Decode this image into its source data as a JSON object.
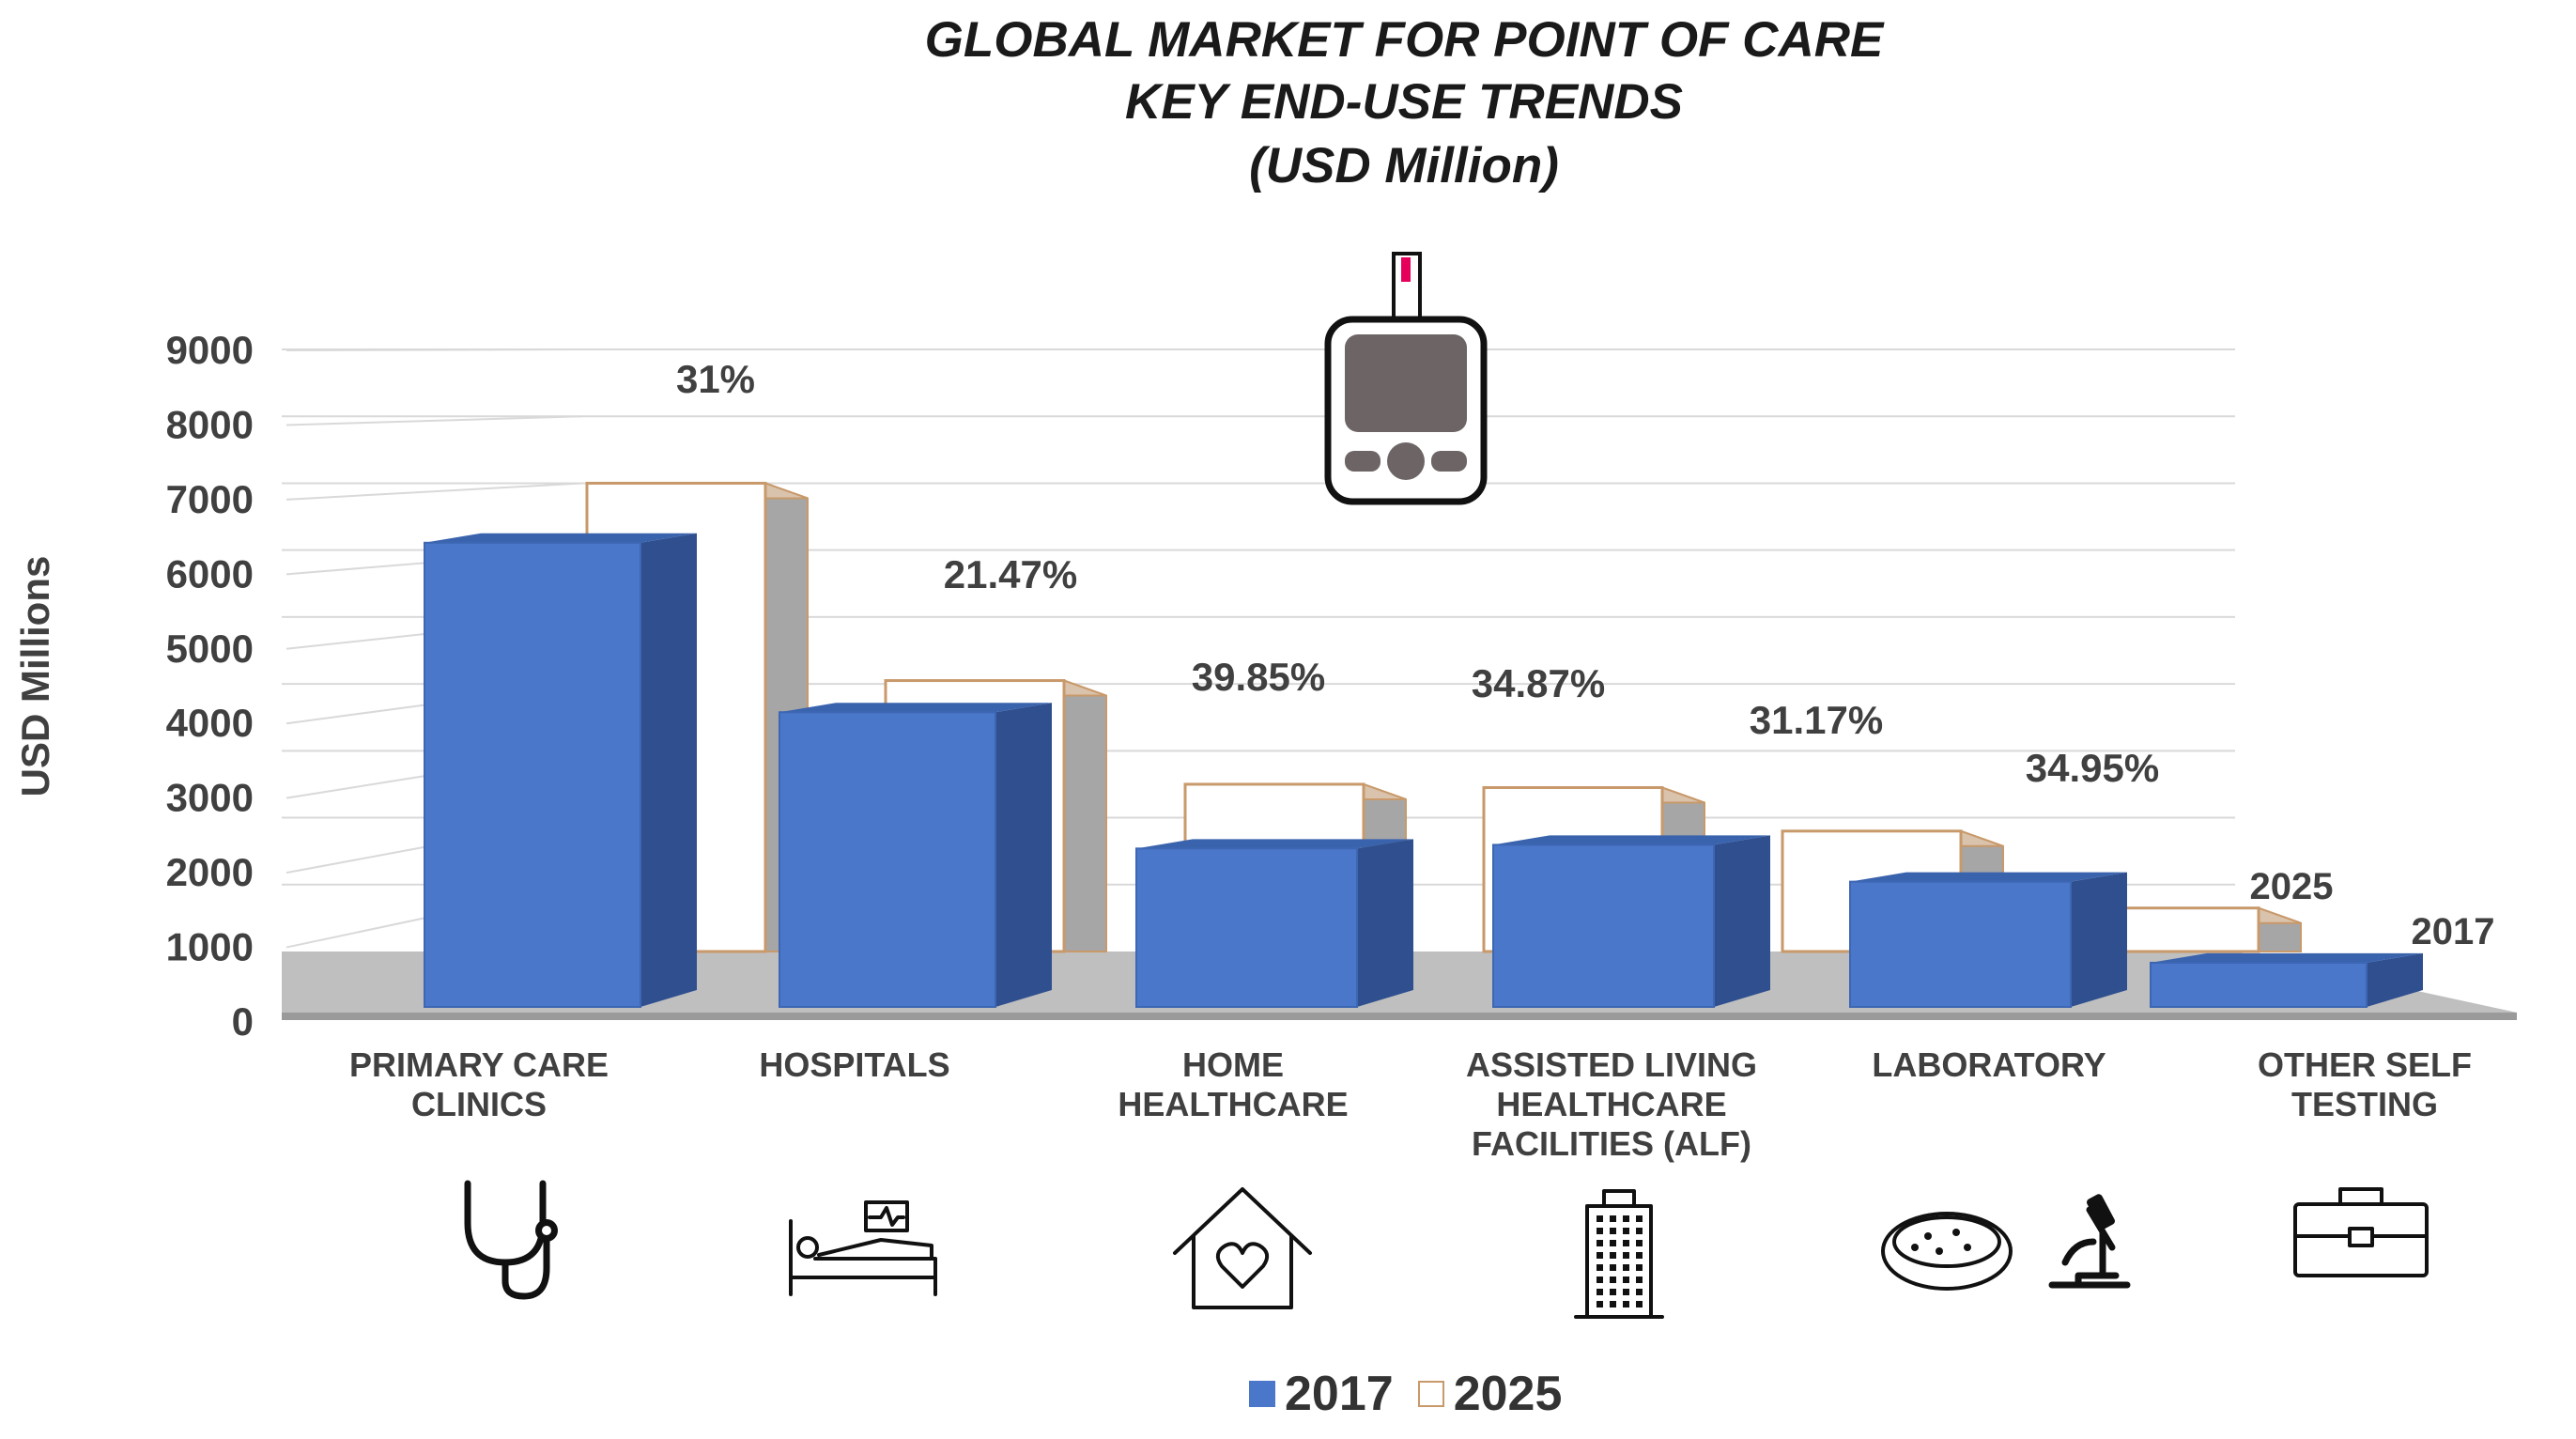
{
  "title": {
    "line1": "GLOBAL MARKET FOR POINT OF CARE",
    "line2": "KEY END-USE TRENDS",
    "line3": "(USD Million)"
  },
  "chart_data": {
    "type": "bar",
    "title": "GLOBAL MARKET FOR POINT OF CARE KEY END-USE TRENDS (USD Million)",
    "ylabel": "USD Millions",
    "xlabel": "",
    "ylim": [
      0,
      9000
    ],
    "yticks": [
      "0",
      "1000",
      "2000",
      "3000",
      "4000",
      "5000",
      "6000",
      "7000",
      "8000",
      "9000"
    ],
    "categories": [
      {
        "lines": [
          "PRIMARY CARE",
          "CLINICS"
        ],
        "icon": "stethoscope-icon"
      },
      {
        "lines": [
          "HOSPITALS"
        ],
        "icon": "hospital-bed-icon"
      },
      {
        "lines": [
          "HOME",
          "HEALTHCARE"
        ],
        "icon": "home-heart-icon"
      },
      {
        "lines": [
          "ASSISTED LIVING",
          "HEALTHCARE",
          "FACILITIES (ALF)"
        ],
        "icon": "building-icon"
      },
      {
        "lines": [
          "LABORATORY"
        ],
        "icon": "petri-dish-microscope-icon"
      },
      {
        "lines": [
          "OTHER SELF",
          "TESTING"
        ],
        "icon": "medical-case-icon"
      }
    ],
    "series": [
      {
        "name": "2017",
        "values": [
          6300,
          4000,
          2150,
          2200,
          1700,
          600
        ],
        "color": "#4a77c9"
      },
      {
        "name": "2025",
        "values": [
          7000,
          4050,
          2500,
          2450,
          1800,
          650
        ],
        "color": "#ffffff"
      }
    ],
    "growth_labels": [
      "31%",
      "21.47%",
      "39.85%",
      "34.87%",
      "31.17%",
      "34.95%"
    ],
    "annotations": {
      "series_2025": "2025",
      "series_2017": "2017"
    },
    "legend": [
      "2017",
      "2025"
    ],
    "legend_position": "bottom"
  },
  "device_icon": "glucose-meter-icon",
  "legend": {
    "item1": "2017",
    "item2": "2025"
  }
}
